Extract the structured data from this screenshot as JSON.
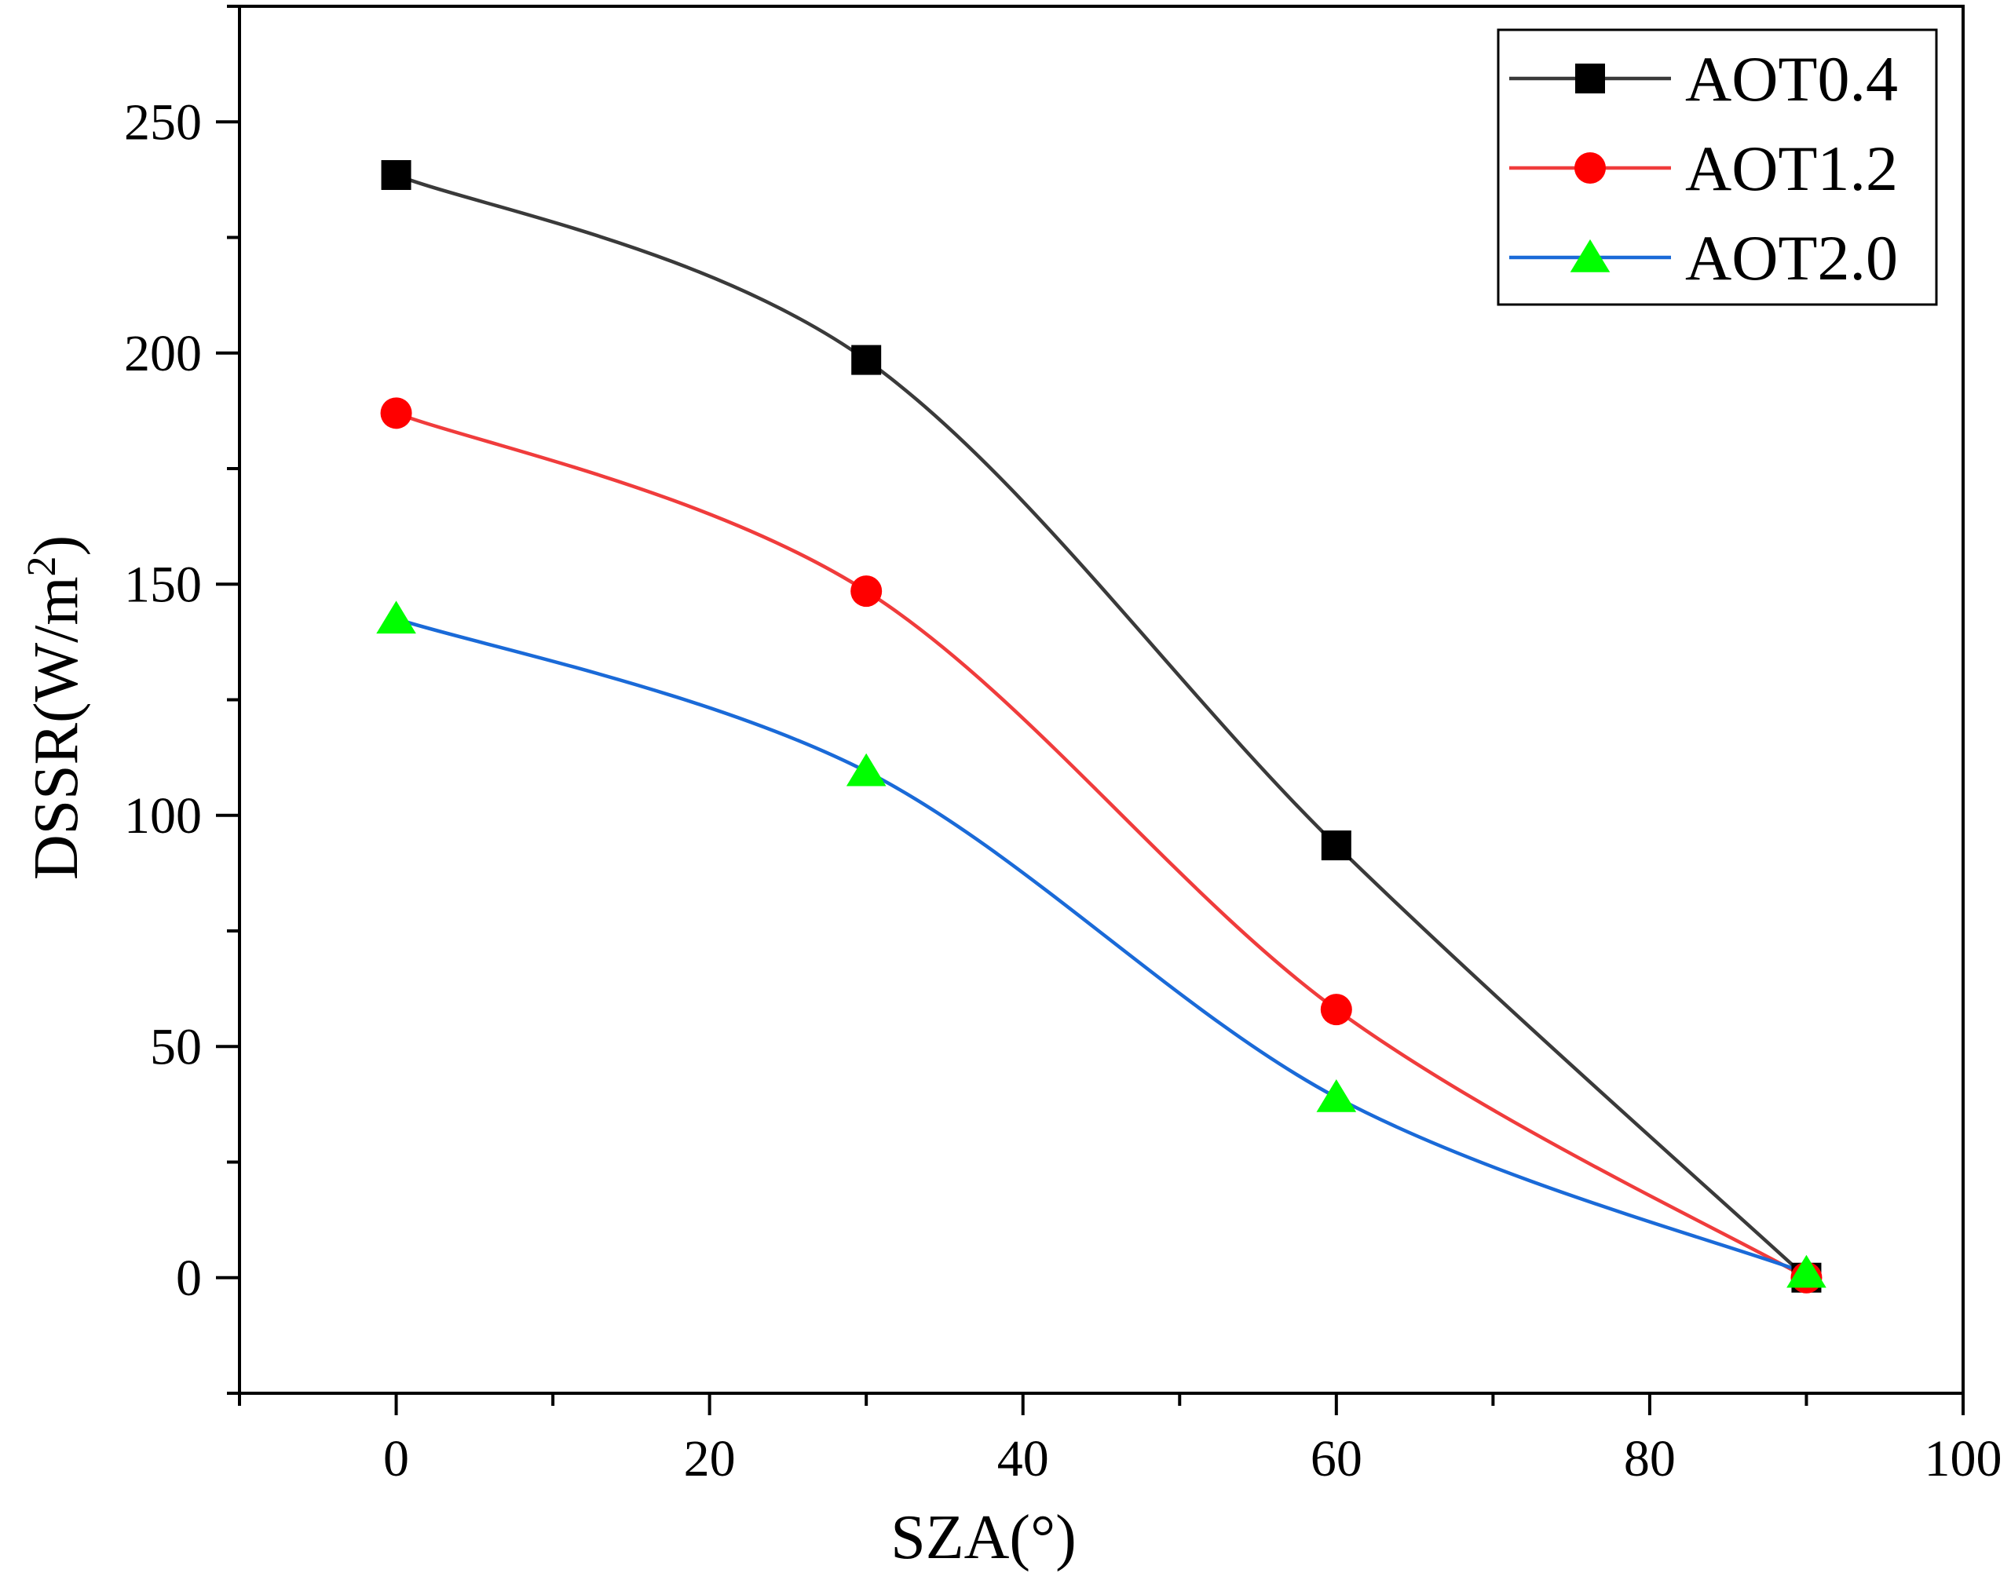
{
  "chart_data": {
    "type": "line",
    "xlabel": "SZA(°)",
    "ylabel_main": "DSSR(W/m",
    "ylabel_sup": "2",
    "ylabel_close": ")",
    "xlim": [
      -10,
      100
    ],
    "ylim": [
      -25,
      275
    ],
    "x_ticks": [
      0,
      20,
      40,
      60,
      80,
      100
    ],
    "y_ticks": [
      0,
      50,
      100,
      150,
      200,
      250
    ],
    "x_tick_labels": [
      "0",
      "20",
      "40",
      "60",
      "80",
      "100"
    ],
    "y_tick_labels": [
      "0",
      "50",
      "100",
      "150",
      "200",
      "250"
    ],
    "x": [
      0,
      30,
      60,
      90
    ],
    "series": [
      {
        "name": "AOT0.4",
        "values": [
          238.5,
          198.5,
          93.5,
          0
        ],
        "line_color": "#3a3a3a",
        "marker_color": "#000000",
        "marker": "square"
      },
      {
        "name": "AOT1.2",
        "values": [
          187,
          148.5,
          58,
          0
        ],
        "line_color": "#f03c3c",
        "marker_color": "#ff0000",
        "marker": "circle"
      },
      {
        "name": "AOT2.0",
        "values": [
          142.5,
          109.5,
          39,
          1
        ],
        "line_color": "#1a6ad8",
        "marker_color": "#00ff00",
        "marker": "triangle"
      }
    ],
    "legend_position": "top-right",
    "grid": false
  }
}
